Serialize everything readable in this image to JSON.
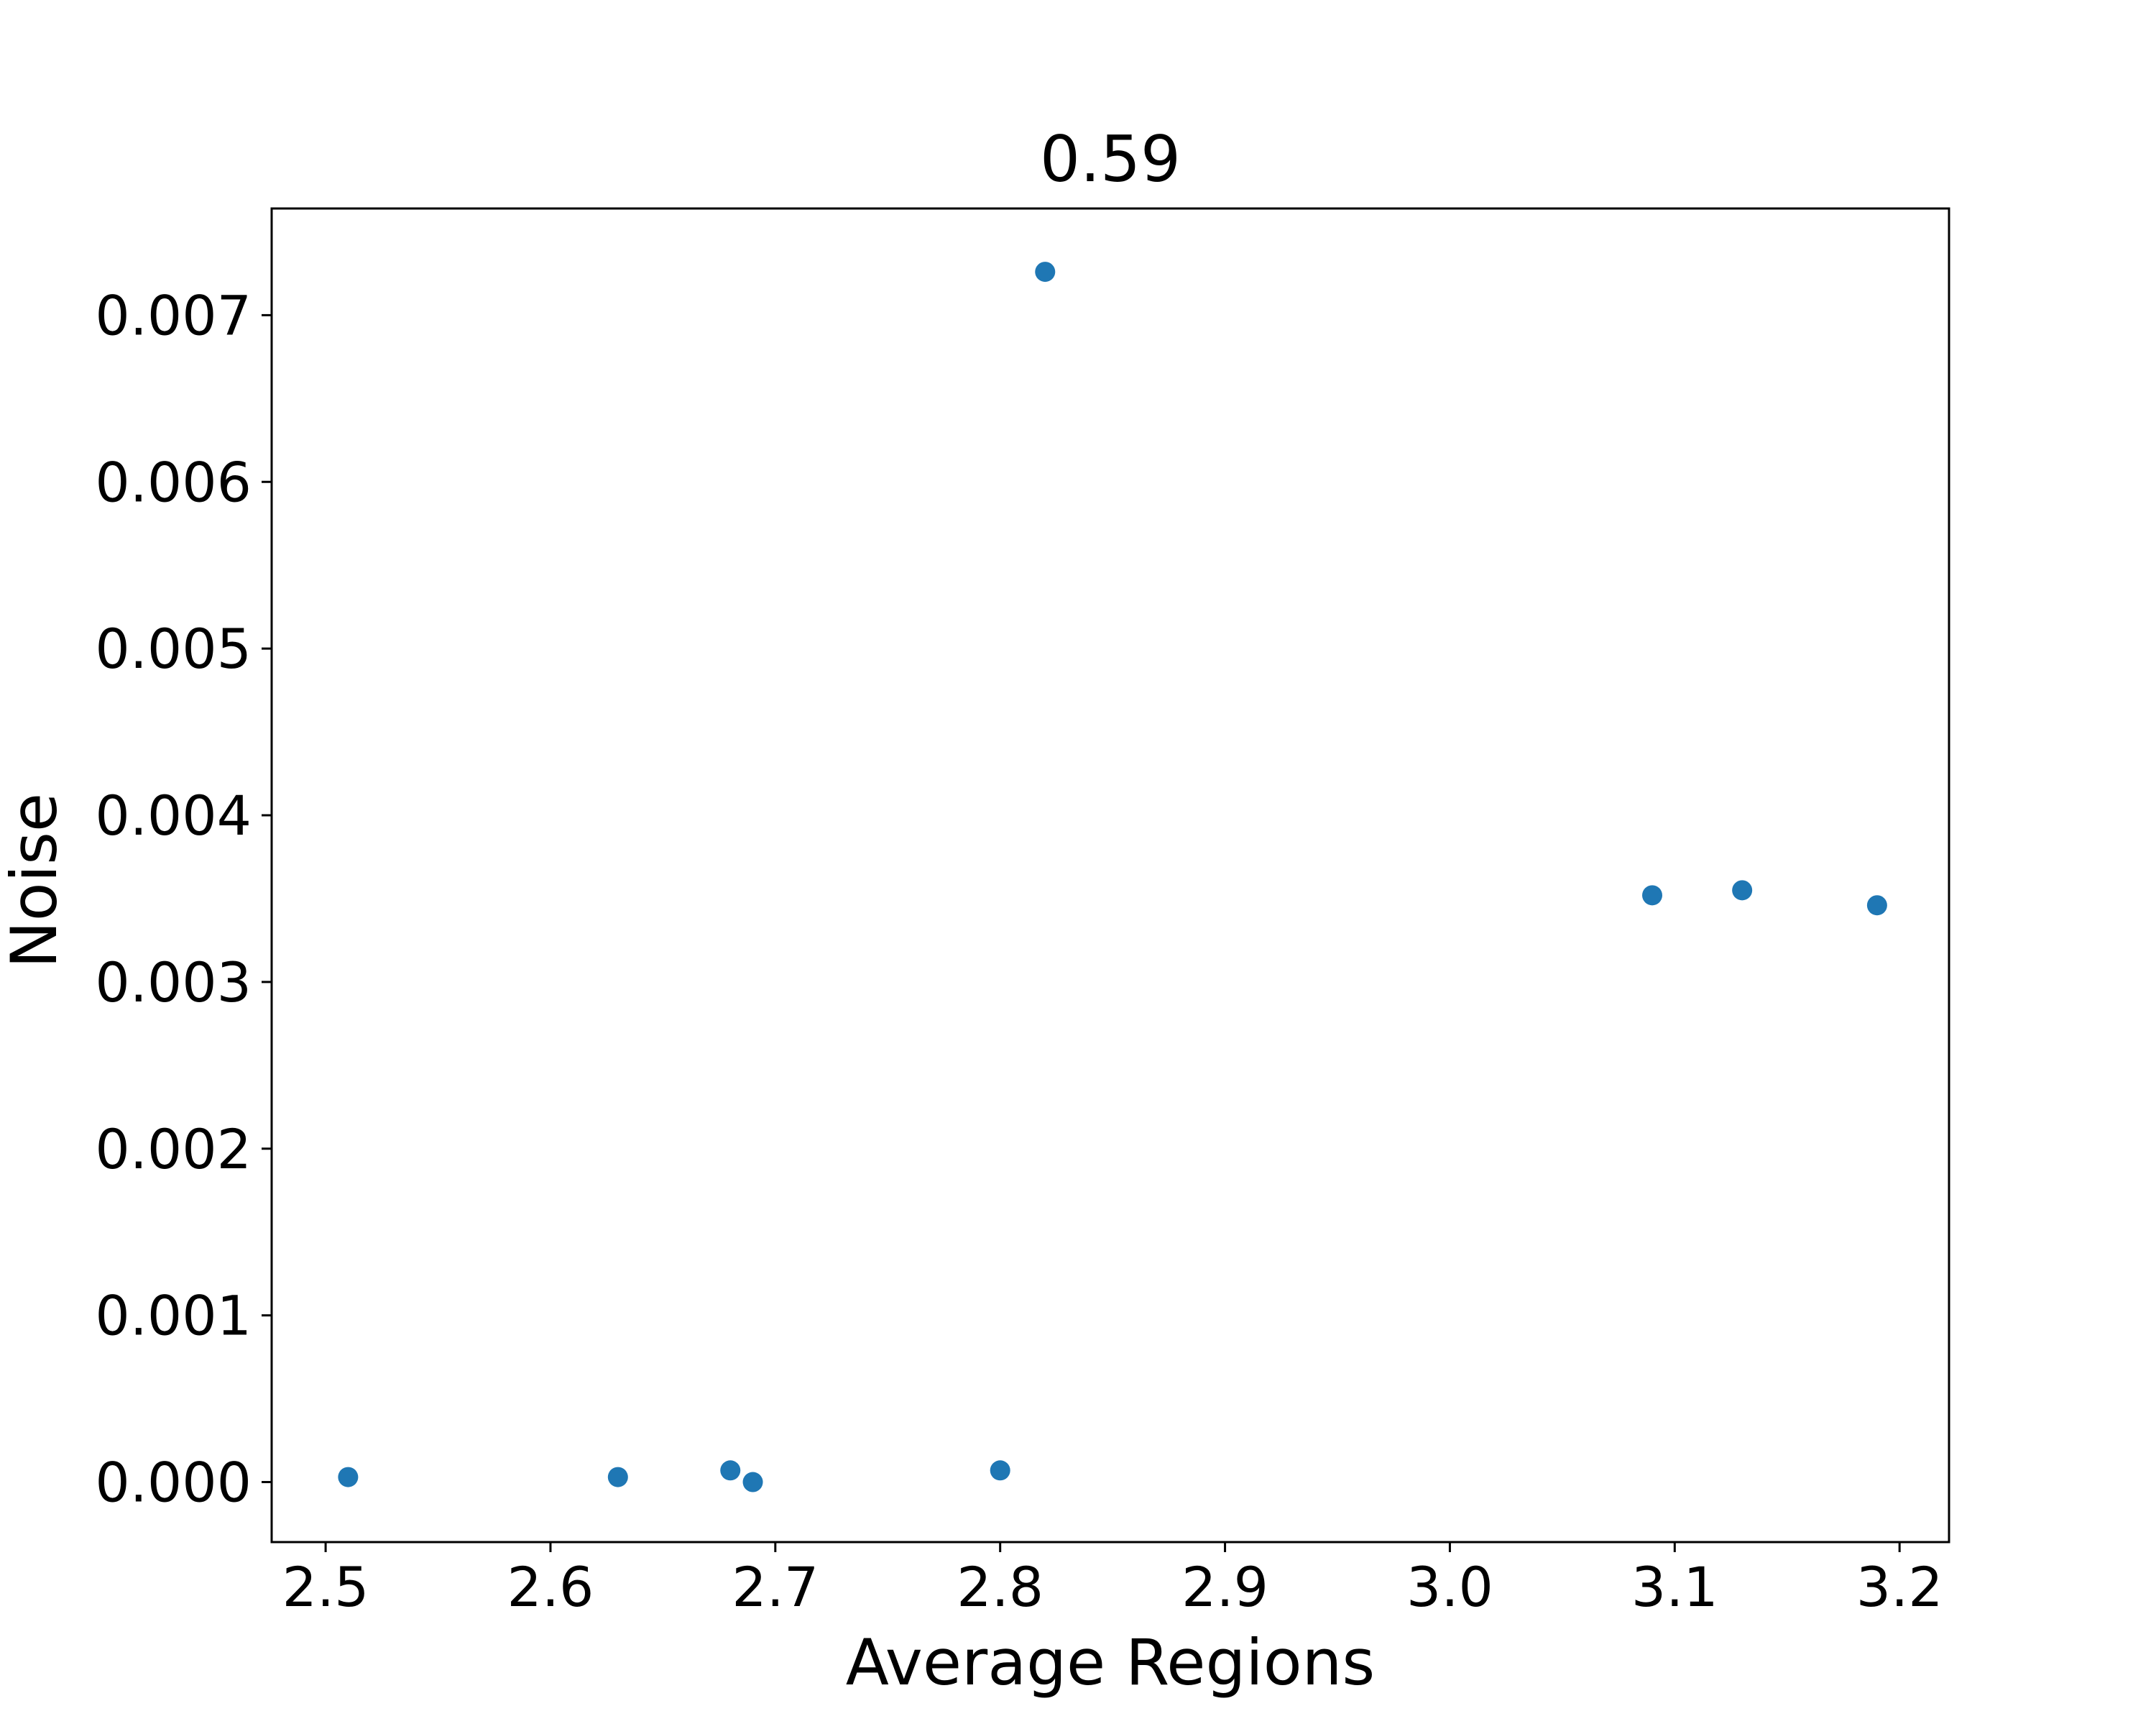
{
  "chart_data": {
    "type": "scatter",
    "title": "0.59",
    "xlabel": "Average Regions",
    "ylabel": "Noise",
    "xlim": [
      2.476,
      3.222
    ],
    "ylim": [
      -0.00036,
      0.00764
    ],
    "xticks": [
      2.5,
      2.6,
      2.7,
      2.8,
      2.9,
      3.0,
      3.1,
      3.2
    ],
    "xtick_labels": [
      "2.5",
      "2.6",
      "2.7",
      "2.8",
      "2.9",
      "3.0",
      "3.1",
      "3.2"
    ],
    "yticks": [
      0.0,
      0.001,
      0.002,
      0.003,
      0.004,
      0.005,
      0.006,
      0.007
    ],
    "ytick_labels": [
      "0.000",
      "0.001",
      "0.002",
      "0.003",
      "0.004",
      "0.005",
      "0.006",
      "0.007"
    ],
    "grid": false,
    "legend": "none",
    "marker_color": "#1f77b4",
    "points": [
      {
        "x": 2.51,
        "y": 3e-05
      },
      {
        "x": 2.63,
        "y": 3e-05
      },
      {
        "x": 2.68,
        "y": 7e-05
      },
      {
        "x": 2.69,
        "y": 0.0
      },
      {
        "x": 2.8,
        "y": 7e-05
      },
      {
        "x": 2.82,
        "y": 0.00726
      },
      {
        "x": 3.09,
        "y": 0.00352
      },
      {
        "x": 3.13,
        "y": 0.00355
      },
      {
        "x": 3.19,
        "y": 0.00346
      }
    ]
  }
}
